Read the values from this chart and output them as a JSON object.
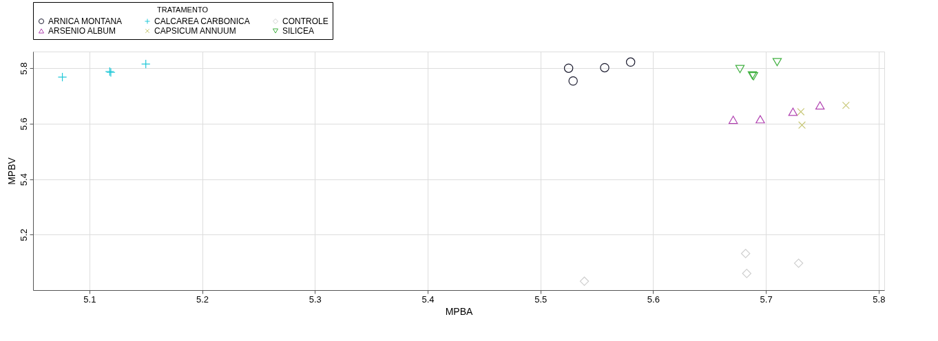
{
  "chart_data": {
    "type": "scatter",
    "xlabel": "MPBA",
    "ylabel": "MPBV",
    "legend_title": "TRATAMENTO",
    "xlim": [
      5.05,
      5.805
    ],
    "xticks": [
      5.1,
      5.2,
      5.3,
      5.4,
      5.5,
      5.6,
      5.7,
      5.8
    ],
    "ylim": [
      5.0,
      5.86
    ],
    "yticks": [
      5.2,
      5.4,
      5.6,
      5.8
    ],
    "grid": true,
    "legend": "top left",
    "series": [
      {
        "name": "ARNICA MONTANA",
        "color": "#1a1a2e",
        "marker": "circle",
        "x": [
          5.525,
          5.529,
          5.557,
          5.58
        ],
        "values": [
          5.8,
          5.754,
          5.802,
          5.822
        ]
      },
      {
        "name": "CALCAREA CARBONICA",
        "color": "#20c8d8",
        "marker": "plus",
        "x": [
          5.076,
          5.118,
          5.119,
          5.15
        ],
        "values": [
          5.768,
          5.788,
          5.785,
          5.815
        ]
      },
      {
        "name": "CONTROLE",
        "color": "#cfcfcf",
        "marker": "diamond",
        "x": [
          5.539,
          5.682,
          5.683,
          5.729
        ],
        "values": [
          5.032,
          5.132,
          5.06,
          5.097
        ]
      },
      {
        "name": "ARSENIO ALBUM",
        "color": "#b040b0",
        "marker": "triangle",
        "x": [
          5.671,
          5.695,
          5.724,
          5.748
        ],
        "values": [
          5.614,
          5.616,
          5.643,
          5.666
        ]
      },
      {
        "name": "CAPSICUM ANNUUM",
        "color": "#c8c878",
        "marker": "cross",
        "x": [
          5.731,
          5.732,
          5.771
        ],
        "values": [
          5.643,
          5.595,
          5.666
        ]
      },
      {
        "name": "SILICEA",
        "color": "#40b040",
        "marker": "triangle-down",
        "x": [
          5.677,
          5.688,
          5.689,
          5.71
        ],
        "values": [
          5.797,
          5.774,
          5.771,
          5.822
        ]
      }
    ]
  }
}
